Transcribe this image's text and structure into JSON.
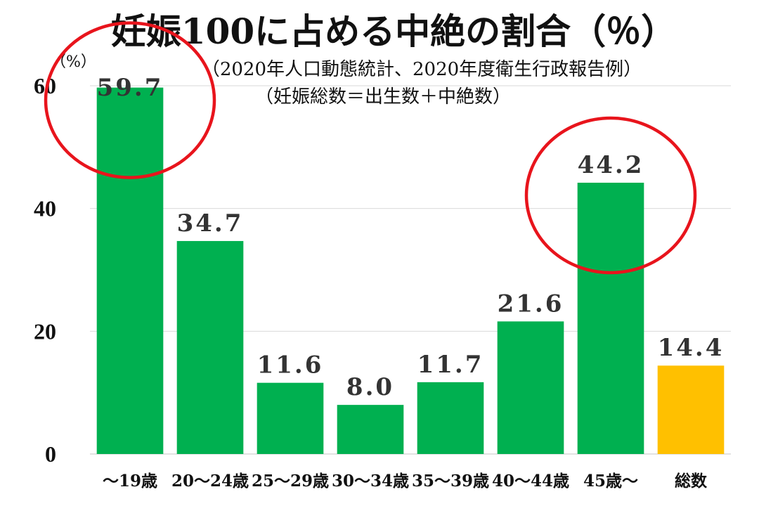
{
  "chart_data": {
    "type": "bar",
    "title": "妊娠100に占める中絶の割合（％）",
    "subtitle_source": "（2020年人口動態統計、2020年度衛生行政報告例）",
    "subtitle_note": "（妊娠総数＝出生数＋中絶数）",
    "y_unit": "（%）",
    "categories": [
      "～19歳",
      "20～24歳",
      "25～29歳",
      "30～34歳",
      "35～39歳",
      "40～44歳",
      "45歳～",
      "総数"
    ],
    "values": [
      59.7,
      34.7,
      11.6,
      8.0,
      11.7,
      21.6,
      44.2,
      14.4
    ],
    "value_labels": [
      "59.7",
      "34.7",
      "11.6",
      "8.0",
      "11.7",
      "21.6",
      "44.2",
      "14.4"
    ],
    "bar_colors": [
      "#00b050",
      "#00b050",
      "#00b050",
      "#00b050",
      "#00b050",
      "#00b050",
      "#00b050",
      "#ffc000"
    ],
    "ylim": [
      0,
      60
    ],
    "yticks": [
      0,
      20,
      40,
      60
    ],
    "grid": true,
    "highlight_color": "#e8141c",
    "highlighted_categories": [
      "～19歳",
      "45歳～"
    ]
  }
}
